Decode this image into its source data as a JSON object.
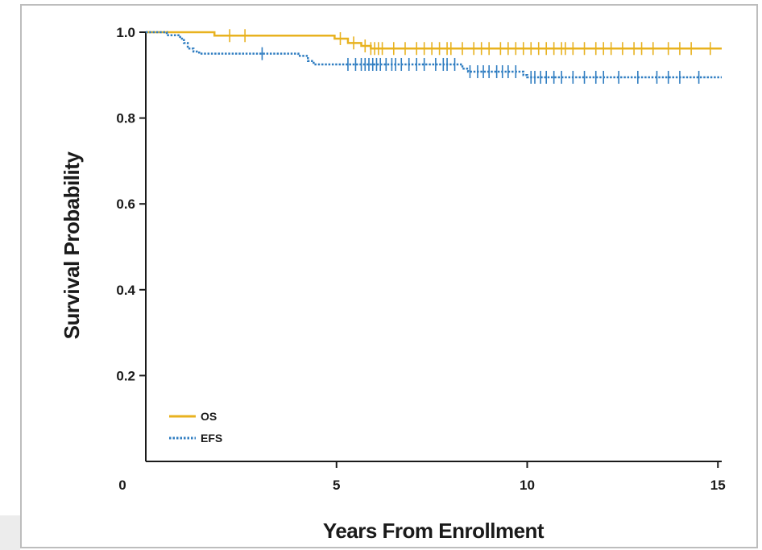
{
  "chart_data": {
    "type": "line",
    "xlabel": "Years From Enrollment",
    "ylabel": "Survival Probability",
    "xlim": [
      0,
      15.1
    ],
    "ylim": [
      0.0,
      1.0
    ],
    "x_ticks": [
      {
        "value": 0,
        "label": "0"
      },
      {
        "value": 5,
        "label": "5"
      },
      {
        "value": 10,
        "label": "10"
      },
      {
        "value": 15,
        "label": "15"
      }
    ],
    "y_ticks": [
      {
        "value": 1.0,
        "label": "1.0"
      },
      {
        "value": 0.8,
        "label": "0.8"
      },
      {
        "value": 0.6,
        "label": "0.6"
      },
      {
        "value": 0.4,
        "label": "0.4"
      },
      {
        "value": 0.2,
        "label": "0.2"
      }
    ],
    "legend_position": "bottom-left",
    "series": [
      {
        "name": "OS",
        "color": "#e8b21f",
        "style": "solid",
        "steps": [
          [
            0,
            1.0
          ],
          [
            1.8,
            0.992
          ],
          [
            4.95,
            0.985
          ],
          [
            5.3,
            0.975
          ],
          [
            5.65,
            0.968
          ],
          [
            5.9,
            0.962
          ],
          [
            15.1,
            0.962
          ]
        ],
        "censor_times": [
          2.2,
          2.6,
          5.1,
          5.45,
          5.75,
          5.9,
          6.0,
          6.1,
          6.2,
          6.5,
          6.8,
          7.1,
          7.3,
          7.5,
          7.7,
          7.9,
          8.0,
          8.3,
          8.6,
          8.8,
          9.0,
          9.3,
          9.5,
          9.7,
          9.9,
          10.1,
          10.3,
          10.5,
          10.7,
          10.9,
          11.0,
          11.2,
          11.5,
          11.8,
          12.0,
          12.2,
          12.5,
          12.8,
          13.0,
          13.3,
          13.7,
          14.0,
          14.3,
          14.8
        ]
      },
      {
        "name": "EFS",
        "color": "#2f7dc1",
        "style": "dotted",
        "steps": [
          [
            0,
            1.0
          ],
          [
            0.55,
            0.993
          ],
          [
            0.9,
            0.985
          ],
          [
            1.0,
            0.975
          ],
          [
            1.1,
            0.962
          ],
          [
            1.25,
            0.955
          ],
          [
            1.4,
            0.95
          ],
          [
            4.0,
            0.945
          ],
          [
            4.25,
            0.933
          ],
          [
            4.4,
            0.925
          ],
          [
            8.3,
            0.915
          ],
          [
            8.45,
            0.908
          ],
          [
            9.9,
            0.9
          ],
          [
            10.0,
            0.895
          ],
          [
            15.1,
            0.895
          ]
        ],
        "censor_times": [
          3.05,
          5.3,
          5.5,
          5.65,
          5.75,
          5.85,
          5.95,
          6.05,
          6.15,
          6.3,
          6.45,
          6.55,
          6.7,
          6.9,
          7.1,
          7.3,
          7.6,
          7.8,
          7.9,
          8.1,
          8.5,
          8.7,
          8.85,
          9.0,
          9.2,
          9.35,
          9.5,
          9.7,
          10.1,
          10.2,
          10.35,
          10.5,
          10.7,
          10.9,
          11.2,
          11.5,
          11.8,
          12.0,
          12.4,
          12.9,
          13.4,
          13.7,
          14.0,
          14.5
        ]
      }
    ]
  }
}
